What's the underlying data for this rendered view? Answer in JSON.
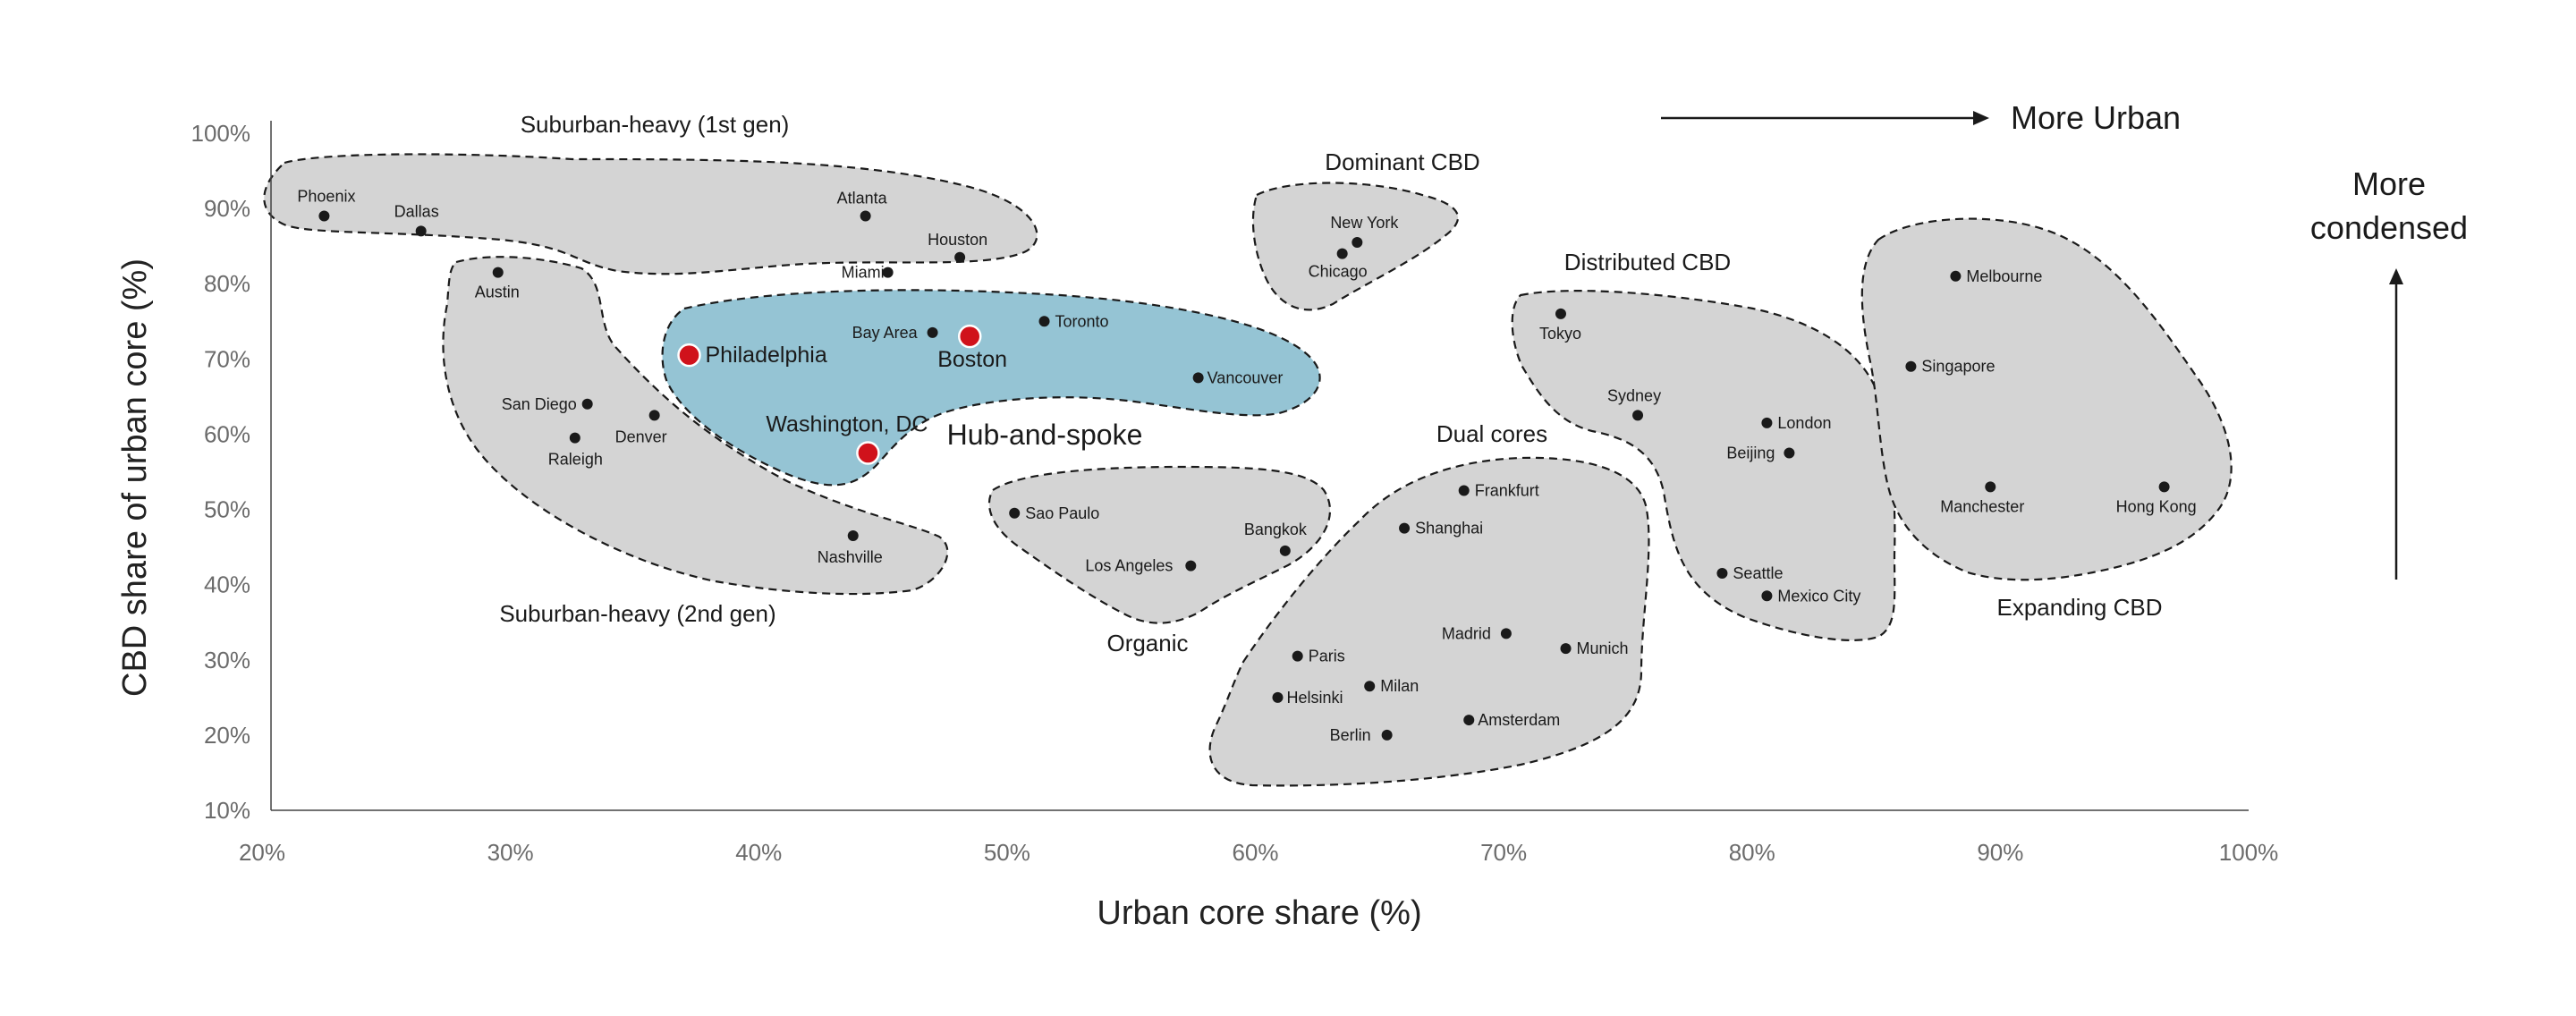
{
  "chart_data": {
    "type": "scatter",
    "xlabel": "Urban core share (%)",
    "ylabel": "CBD share of urban core (%)",
    "xlim": [
      20,
      100
    ],
    "ylim": [
      10,
      100
    ],
    "x_ticks": [
      "20%",
      "30%",
      "40%",
      "50%",
      "60%",
      "70%",
      "80%",
      "90%",
      "100%"
    ],
    "y_ticks": [
      "100%",
      "90%",
      "80%",
      "70%",
      "60%",
      "50%",
      "40%",
      "30%",
      "20%",
      "10%"
    ],
    "grid": false,
    "point_color": "#1a1a1a",
    "highlight_color": "#d0121b",
    "highlight_group_color": "#95c4d4",
    "group_color": "#d4d4d4",
    "points": [
      {
        "label": "Phoenix",
        "x": 22.5,
        "y": 89
      },
      {
        "label": "Dallas",
        "x": 26.4,
        "y": 87
      },
      {
        "label": "Atlanta",
        "x": 44.3,
        "y": 89
      },
      {
        "label": "Houston",
        "x": 48.1,
        "y": 83.5
      },
      {
        "label": "Miami",
        "x": 45.2,
        "y": 81.5
      },
      {
        "label": "Austin",
        "x": 29.5,
        "y": 81.5
      },
      {
        "label": "San Diego",
        "x": 33.1,
        "y": 64
      },
      {
        "label": "Denver",
        "x": 35.8,
        "y": 62.5
      },
      {
        "label": "Raleigh",
        "x": 32.6,
        "y": 59.5
      },
      {
        "label": "Nashville",
        "x": 43.8,
        "y": 46.5
      },
      {
        "label": "Bay Area",
        "x": 47,
        "y": 73.5
      },
      {
        "label": "Toronto",
        "x": 51.5,
        "y": 75
      },
      {
        "label": "Vancouver",
        "x": 57.7,
        "y": 67.5
      },
      {
        "label": "New York",
        "x": 64.1,
        "y": 85.5
      },
      {
        "label": "Chicago",
        "x": 63.5,
        "y": 84
      },
      {
        "label": "Sao Paulo",
        "x": 50.3,
        "y": 49.5
      },
      {
        "label": "Bangkok",
        "x": 61.2,
        "y": 44.5
      },
      {
        "label": "Los Angeles",
        "x": 57.4,
        "y": 42.5
      },
      {
        "label": "Tokyo",
        "x": 72.3,
        "y": 76
      },
      {
        "label": "Sydney",
        "x": 75.4,
        "y": 62.5
      },
      {
        "label": "London",
        "x": 80.6,
        "y": 61.5
      },
      {
        "label": "Beijing",
        "x": 81.5,
        "y": 57.5
      },
      {
        "label": "Seattle",
        "x": 78.8,
        "y": 41.5
      },
      {
        "label": "Mexico City",
        "x": 80.6,
        "y": 38.5
      },
      {
        "label": "Frankfurt",
        "x": 68.4,
        "y": 52.5
      },
      {
        "label": "Shanghai",
        "x": 66,
        "y": 47.5
      },
      {
        "label": "Madrid",
        "x": 70.1,
        "y": 33.5
      },
      {
        "label": "Munich",
        "x": 72.5,
        "y": 31.5
      },
      {
        "label": "Paris",
        "x": 61.7,
        "y": 30.5
      },
      {
        "label": "Milan",
        "x": 64.6,
        "y": 26.5
      },
      {
        "label": "Helsinki",
        "x": 60.9,
        "y": 25
      },
      {
        "label": "Amsterdam",
        "x": 68.6,
        "y": 22
      },
      {
        "label": "Berlin",
        "x": 65.3,
        "y": 20
      },
      {
        "label": "Melbourne",
        "x": 88.2,
        "y": 81
      },
      {
        "label": "Singapore",
        "x": 86.4,
        "y": 69
      },
      {
        "label": "Manchester",
        "x": 89.6,
        "y": 53
      },
      {
        "label": "Hong Kong",
        "x": 96.6,
        "y": 53
      }
    ],
    "highlighted_points": [
      {
        "label": "Philadelphia",
        "x": 37.2,
        "y": 70.5
      },
      {
        "label": "Boston",
        "x": 48.5,
        "y": 73
      },
      {
        "label": "Washington, DC",
        "x": 44.4,
        "y": 57.5
      }
    ],
    "groups": [
      "Suburban-heavy (1st gen)",
      "Dominant CBD",
      "Distributed CBD",
      "Suburban-heavy (2nd gen)",
      "Hub-and-spoke",
      "Organic",
      "Dual cores",
      "Expanding CBD"
    ],
    "annotations": {
      "more_urban": "More Urban",
      "more_condensed_line1": "More",
      "more_condensed_line2": "condensed"
    }
  }
}
